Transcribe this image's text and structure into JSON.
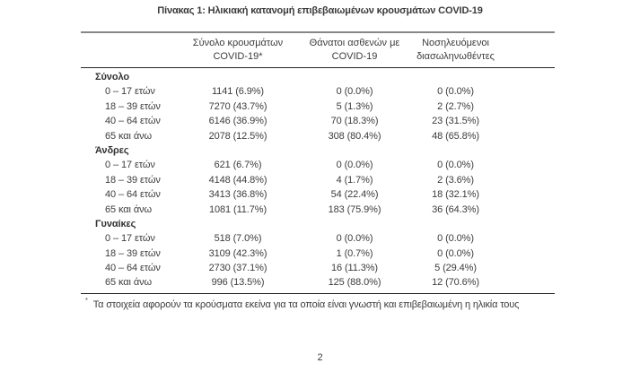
{
  "title": "Πίνακας 1: Ηλικιακή κατανομή επιβεβαιωμένων κρουσμάτων COVID-19",
  "table": {
    "col_headers": [
      {
        "line1": "Σύνολο κρουσμάτων",
        "line2": "COVID-19*"
      },
      {
        "line1": "Θάνατοι ασθενών με",
        "line2": "COVID-19"
      },
      {
        "line1": "Νοσηλευόμενοι",
        "line2": "διασωληνωθέντες"
      }
    ],
    "sections": [
      {
        "label": "Σύνολο",
        "rows": [
          {
            "age": "0 – 17 ετών",
            "cases": "1141 (6.9%)",
            "deaths": "0 (0.0%)",
            "intubated": "0 (0.0%)"
          },
          {
            "age": "18 – 39 ετών",
            "cases": "7270 (43.7%)",
            "deaths": "5 (1.3%)",
            "intubated": "2 (2.7%)"
          },
          {
            "age": "40 – 64 ετών",
            "cases": "6146 (36.9%)",
            "deaths": "70 (18.3%)",
            "intubated": "23 (31.5%)"
          },
          {
            "age": "65 και άνω",
            "cases": "2078 (12.5%)",
            "deaths": "308 (80.4%)",
            "intubated": "48 (65.8%)"
          }
        ]
      },
      {
        "label": "Άνδρες",
        "rows": [
          {
            "age": "0 – 17 ετών",
            "cases": "621 (6.7%)",
            "deaths": "0 (0.0%)",
            "intubated": "0 (0.0%)"
          },
          {
            "age": "18 – 39 ετών",
            "cases": "4148 (44.8%)",
            "deaths": "4 (1.7%)",
            "intubated": "2 (3.6%)"
          },
          {
            "age": "40 – 64 ετών",
            "cases": "3413 (36.8%)",
            "deaths": "54 (22.4%)",
            "intubated": "18 (32.1%)"
          },
          {
            "age": "65 και άνω",
            "cases": "1081 (11.7%)",
            "deaths": "183 (75.9%)",
            "intubated": "36 (64.3%)"
          }
        ]
      },
      {
        "label": "Γυναίκες",
        "rows": [
          {
            "age": "0 – 17 ετών",
            "cases": "518 (7.0%)",
            "deaths": "0 (0.0%)",
            "intubated": "0 (0.0%)"
          },
          {
            "age": "18 – 39 ετών",
            "cases": "3109 (42.3%)",
            "deaths": "1 (0.7%)",
            "intubated": "0 (0.0%)"
          },
          {
            "age": "40 – 64 ετών",
            "cases": "2730 (37.1%)",
            "deaths": "16 (11.3%)",
            "intubated": "5 (29.4%)"
          },
          {
            "age": "65 και άνω",
            "cases": "996 (13.5%)",
            "deaths": "125 (88.0%)",
            "intubated": "12 (70.6%)"
          }
        ]
      }
    ]
  },
  "footnote": {
    "marker": "*",
    "text": "Τα στοιχεία αφορούν τα κρούσματα εκείνα για τα οποία είναι γνωστή και επιβεβαιωμένη η ηλικία τους"
  },
  "page_number": "2"
}
